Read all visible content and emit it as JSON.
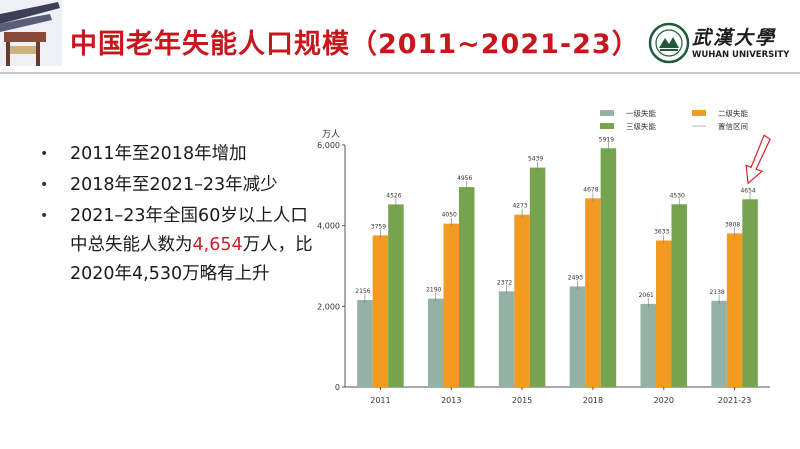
{
  "slide": {
    "title": "中国老年失能人口规模（2011~2021-23）",
    "logo": {
      "name": "武漢大學",
      "en": "WUHAN UNIVERSITY"
    }
  },
  "bullets": [
    {
      "text": "2011年至2018年增加"
    },
    {
      "text": "2018年至2021–23年减少"
    },
    {
      "pre": "2021–23年全国60岁以上人口中总失能人数为",
      "highlight": "4,654",
      "post": "万人，比2020年4,530万略有上升"
    }
  ],
  "chart_data": {
    "type": "bar",
    "ylabel": "万人",
    "ylim": [
      0,
      6000
    ],
    "yticks": [
      0,
      2000,
      4000,
      6000
    ],
    "ytick_labels": [
      "0",
      "2,000",
      "4,000",
      "6,000"
    ],
    "categories": [
      "2011",
      "2013",
      "2015",
      "2018",
      "2020",
      "2021-23"
    ],
    "series": [
      {
        "name": "一级失能",
        "color": "#93b2a4",
        "values": [
          2156,
          2190,
          2372,
          2493,
          2061,
          2138
        ]
      },
      {
        "name": "二级失能",
        "color": "#f39a23",
        "values": [
          3759,
          4050,
          4273,
          4678,
          3633,
          3808
        ]
      },
      {
        "name": "三级失能",
        "color": "#76a34e",
        "values": [
          4526,
          4956,
          5439,
          5919,
          4530,
          4654
        ]
      }
    ],
    "legend": {
      "position": "top-right",
      "extra": "置信区间"
    },
    "grid": false,
    "annotation": {
      "type": "arrow",
      "target": "2021-23"
    }
  }
}
